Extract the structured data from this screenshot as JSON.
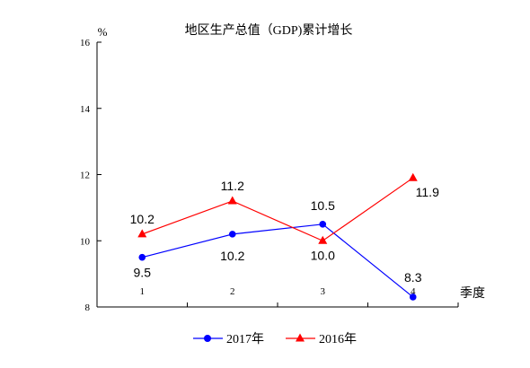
{
  "chart_data": {
    "type": "line",
    "title": "地区生产总值（GDP)累计增长",
    "ylabel": "%",
    "xlabel": "季度",
    "categories": [
      "1",
      "2",
      "3",
      "4"
    ],
    "ylim": [
      8,
      16
    ],
    "yticks": [
      "8",
      "10",
      "12",
      "14",
      "16"
    ],
    "legend_position": "bottom",
    "series": [
      {
        "name": "2017年",
        "values": [
          9.5,
          10.2,
          10.5,
          8.3
        ],
        "labels": [
          "9.5",
          "10.2",
          "10.5",
          "8.3"
        ],
        "color": "#0000ff",
        "marker": "circle"
      },
      {
        "name": "2016年",
        "values": [
          10.2,
          11.2,
          10.0,
          11.9
        ],
        "labels": [
          "10.2",
          "11.2",
          "10.0",
          "11.9"
        ],
        "color": "#ff0000",
        "marker": "triangle"
      }
    ]
  }
}
